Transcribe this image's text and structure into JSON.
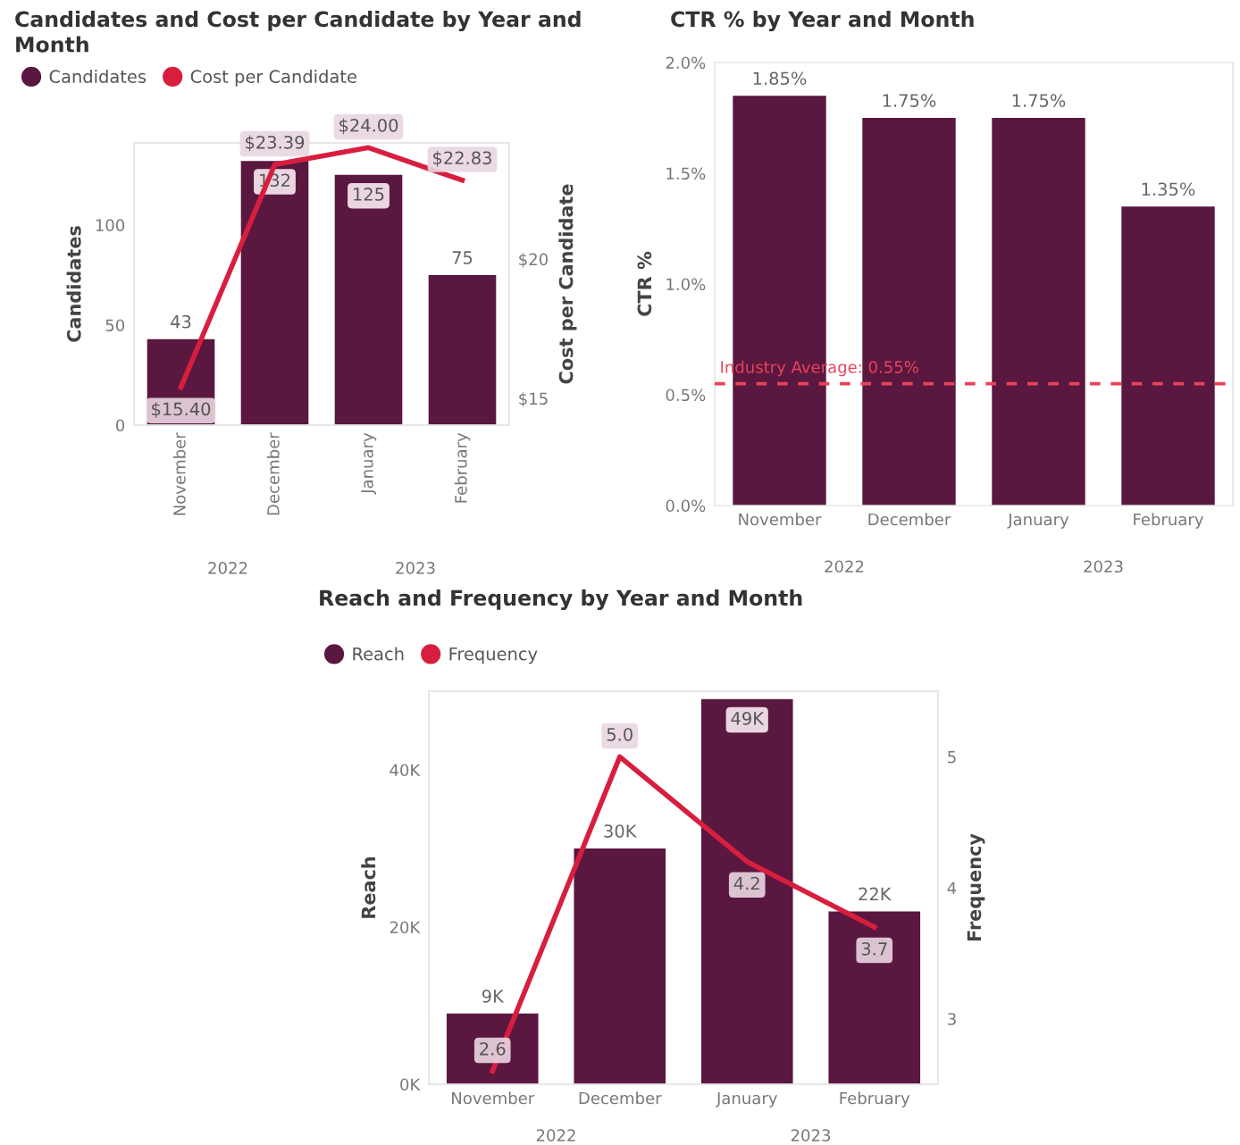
{
  "chart_data": [
    {
      "type": "bar",
      "title": "Candidates and Cost per Candidate by Year and Month",
      "categories": [
        "November",
        "December",
        "January",
        "February"
      ],
      "ylabel": "Candidates",
      "y2label": "Cost per Candidate",
      "ylim": [
        0,
        141
      ],
      "yticks": [
        0,
        50,
        100
      ],
      "y2lim": [
        14.04,
        24.17
      ],
      "y2ticks": [
        {
          "value": 15,
          "label": "$15"
        },
        {
          "value": 20,
          "label": "$20"
        }
      ],
      "legend": "top left",
      "annotations": [
        "2022",
        "2023"
      ],
      "series": [
        {
          "name": "Candidates",
          "color": "#5a1740",
          "values": [
            43,
            132,
            125,
            75
          ],
          "value_labels": [
            "43",
            "132",
            "125",
            "75"
          ]
        },
        {
          "name": "Cost per Candidate",
          "type": "line",
          "axis": "y2",
          "color": "#d81e3f",
          "values": [
            15.4,
            23.39,
            24.0,
            22.83
          ],
          "value_labels": [
            "$15.40",
            "$23.39",
            "$24.00",
            "$22.83"
          ]
        }
      ]
    },
    {
      "type": "bar",
      "title": "CTR % by Year and Month",
      "categories": [
        "November",
        "December",
        "January",
        "February"
      ],
      "ylabel": "CTR %",
      "ylim": [
        0,
        2.0
      ],
      "yticks": [
        {
          "value": 0,
          "label": "0.0%"
        },
        {
          "value": 0.5,
          "label": "0.5%"
        },
        {
          "value": 1.0,
          "label": "1.0%"
        },
        {
          "value": 1.5,
          "label": "1.5%"
        },
        {
          "value": 2.0,
          "label": "2.0%"
        }
      ],
      "annotations": [
        "2022",
        "2023"
      ],
      "ref_lines": [
        {
          "axis": "y",
          "value": 0.55,
          "label": "Industry Average: 0.55%",
          "color": "#e8435a",
          "line_style": "dashed"
        }
      ],
      "series": [
        {
          "color": "#5a1740",
          "values": [
            1.85,
            1.75,
            1.75,
            1.35
          ],
          "value_labels": [
            "1.85%",
            "1.75%",
            "1.75%",
            "1.35%"
          ]
        }
      ]
    },
    {
      "type": "bar",
      "title": "Reach and Frequency by Year and Month",
      "categories": [
        "November",
        "December",
        "January",
        "February"
      ],
      "ylabel": "Reach",
      "y2label": "Frequency",
      "ylim": [
        0,
        50000
      ],
      "yticks": [
        {
          "value": 0,
          "label": "0K"
        },
        {
          "value": 20000,
          "label": "20K"
        },
        {
          "value": 40000,
          "label": "40K"
        }
      ],
      "y2lim": [
        2.5,
        5.5
      ],
      "y2ticks": [
        3,
        4,
        5
      ],
      "legend": "top left",
      "annotations": [
        "2022",
        "2023"
      ],
      "series": [
        {
          "name": "Reach",
          "color": "#5a1740",
          "values": [
            9000,
            30000,
            49000,
            22000
          ],
          "value_labels": [
            "9K",
            "30K",
            "49K",
            "22K"
          ]
        },
        {
          "name": "Frequency",
          "type": "line",
          "axis": "y2",
          "color": "#d81e3f",
          "values": [
            2.6,
            5.0,
            4.2,
            3.7
          ],
          "value_labels": [
            "2.6",
            "5.0",
            "4.2",
            "3.7"
          ]
        }
      ]
    }
  ]
}
